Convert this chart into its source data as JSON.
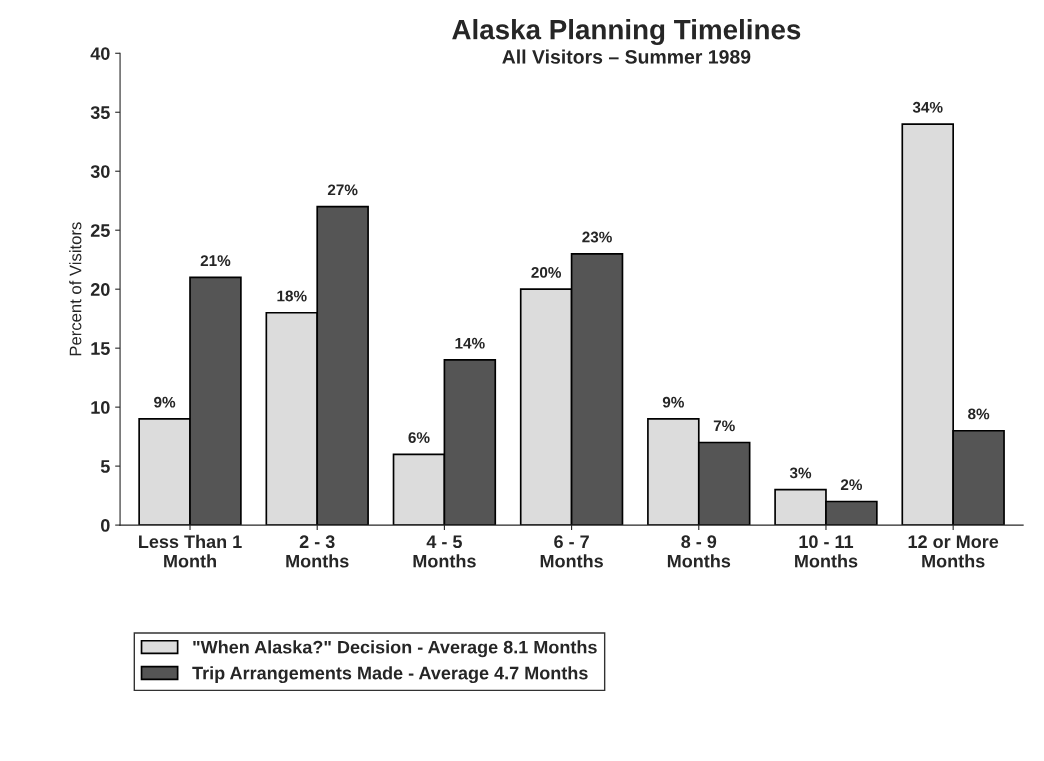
{
  "chart_data": {
    "type": "bar",
    "title": "Alaska Planning Timelines",
    "subtitle": "All Visitors – Summer 1989",
    "ylabel": "Percent of Visitors",
    "categories": [
      "Less Than 1\nMonth",
      "2 - 3\nMonths",
      "4 - 5\nMonths",
      "6 - 7\nMonths",
      "8 - 9\nMonths",
      "10 - 11\nMonths",
      "12 or More\nMonths"
    ],
    "series": [
      {
        "name": "\"When Alaska?\" Decision - Average 8.1 Months",
        "color": "#dcdcdc",
        "values": [
          9,
          18,
          6,
          20,
          9,
          3,
          34
        ],
        "value_labels": [
          "9%",
          "18%",
          "6%",
          "20%",
          "9%",
          "3%",
          "34%"
        ]
      },
      {
        "name": "Trip Arrangements Made - Average 4.7 Months",
        "color": "#555555",
        "values": [
          21,
          27,
          14,
          23,
          7,
          2,
          8
        ],
        "value_labels": [
          "21%",
          "27%",
          "14%",
          "23%",
          "7%",
          "2%",
          "8%"
        ]
      }
    ],
    "ylim": [
      0,
      40
    ],
    "yticks": [
      0,
      5,
      10,
      15,
      20,
      25,
      30,
      35,
      40
    ],
    "grid": false,
    "legend": "bottom"
  }
}
